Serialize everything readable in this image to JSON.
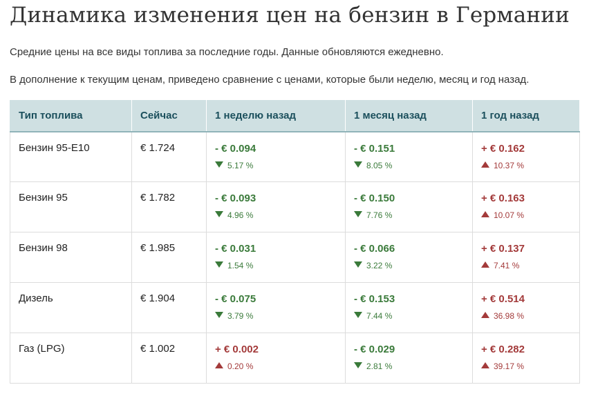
{
  "title": "Динамика изменения цен на бензин в Германии",
  "intro": [
    "Средние цены на все виды топлива за последние годы. Данные обновляются ежедневно.",
    "В дополнение к текущим ценам, приведено сравнение с ценами, которые были неделю, месяц и год назад."
  ],
  "table": {
    "headers": [
      "Тип топлива",
      "Сейчас",
      "1 неделю назад",
      "1 месяц назад",
      "1 год назад"
    ],
    "rows": [
      {
        "fuel": "Бензин 95-E10",
        "now": "€ 1.724",
        "week": {
          "change": "- € 0.094",
          "pct": "5.17 %",
          "dir": "down"
        },
        "month": {
          "change": "- € 0.151",
          "pct": "8.05 %",
          "dir": "down"
        },
        "year": {
          "change": "+ € 0.162",
          "pct": "10.37 %",
          "dir": "up"
        }
      },
      {
        "fuel": "Бензин 95",
        "now": "€ 1.782",
        "week": {
          "change": "- € 0.093",
          "pct": "4.96 %",
          "dir": "down"
        },
        "month": {
          "change": "- € 0.150",
          "pct": "7.76 %",
          "dir": "down"
        },
        "year": {
          "change": "+ € 0.163",
          "pct": "10.07 %",
          "dir": "up"
        }
      },
      {
        "fuel": "Бензин 98",
        "now": "€ 1.985",
        "week": {
          "change": "- € 0.031",
          "pct": "1.54 %",
          "dir": "down"
        },
        "month": {
          "change": "- € 0.066",
          "pct": "3.22 %",
          "dir": "down"
        },
        "year": {
          "change": "+ € 0.137",
          "pct": "7.41 %",
          "dir": "up"
        }
      },
      {
        "fuel": "Дизель",
        "now": "€ 1.904",
        "week": {
          "change": "- € 0.075",
          "pct": "3.79 %",
          "dir": "down"
        },
        "month": {
          "change": "- € 0.153",
          "pct": "7.44 %",
          "dir": "down"
        },
        "year": {
          "change": "+ € 0.514",
          "pct": "36.98 %",
          "dir": "up"
        }
      },
      {
        "fuel": "Газ (LPG)",
        "now": "€ 1.002",
        "week": {
          "change": "+ € 0.002",
          "pct": "0.20 %",
          "dir": "up"
        },
        "month": {
          "change": "- € 0.029",
          "pct": "2.81 %",
          "dir": "down"
        },
        "year": {
          "change": "+ € 0.282",
          "pct": "39.17 %",
          "dir": "up"
        }
      }
    ]
  },
  "colors": {
    "header_bg": "#cfe0e2",
    "header_text": "#1b4f5c",
    "decrease": "#3a7a3a",
    "increase": "#a33a3a"
  }
}
